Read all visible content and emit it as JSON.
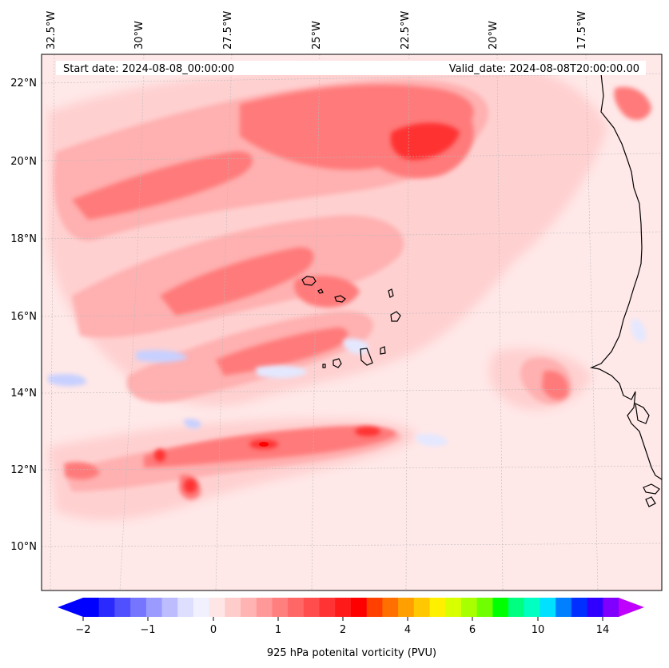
{
  "figure": {
    "start_date_text": "Start date: 2024-08-08_00:00:00",
    "valid_date_text": "Valid_date: 2024-08-08T20:00:00.00"
  },
  "axes": {
    "lon_labels": [
      "32.5°W",
      "30°W",
      "27.5°W",
      "25°W",
      "22.5°W",
      "20°W",
      "17.5°W"
    ],
    "lat_labels": [
      "22°N",
      "20°N",
      "18°N",
      "16°N",
      "14°N",
      "12°N",
      "10°N"
    ],
    "gridlines": true
  },
  "colorbar": {
    "label": "925 hPa potenital vorticity (PVU)",
    "tick_labels": [
      "−2",
      "−1",
      "0",
      "1",
      "2",
      "4",
      "6",
      "10",
      "14"
    ],
    "colors": [
      "#0000ff",
      "#2a2aff",
      "#5050ff",
      "#7575ff",
      "#9a9aff",
      "#bcbcff",
      "#dedeff",
      "#f0f0ff",
      "#ffe6e6",
      "#ffcccc",
      "#ffb3b3",
      "#ff9999",
      "#ff7f7f",
      "#ff6666",
      "#ff4c4c",
      "#ff3333",
      "#ff1a1a",
      "#ff0000",
      "#ff4000",
      "#ff7000",
      "#ffa000",
      "#ffc800",
      "#fff000",
      "#d8ff00",
      "#a8ff00",
      "#70ff00",
      "#00ff00",
      "#00ff80",
      "#00ffc0",
      "#00e0ff",
      "#0080ff",
      "#0030ff",
      "#3000ff",
      "#8000ff"
    ],
    "extend_min_color": "#0000ff",
    "extend_max_color": "#c000ff"
  },
  "field_colors": {
    "background": "#ffe8e8",
    "light": "#ffd0d0",
    "medium": "#ffb0b0",
    "strong": "#ff7a7a",
    "max": "#ff3030",
    "peak": "#ff0000",
    "negative": "#e4e8ff",
    "negative_strong": "#c8d0ff"
  }
}
